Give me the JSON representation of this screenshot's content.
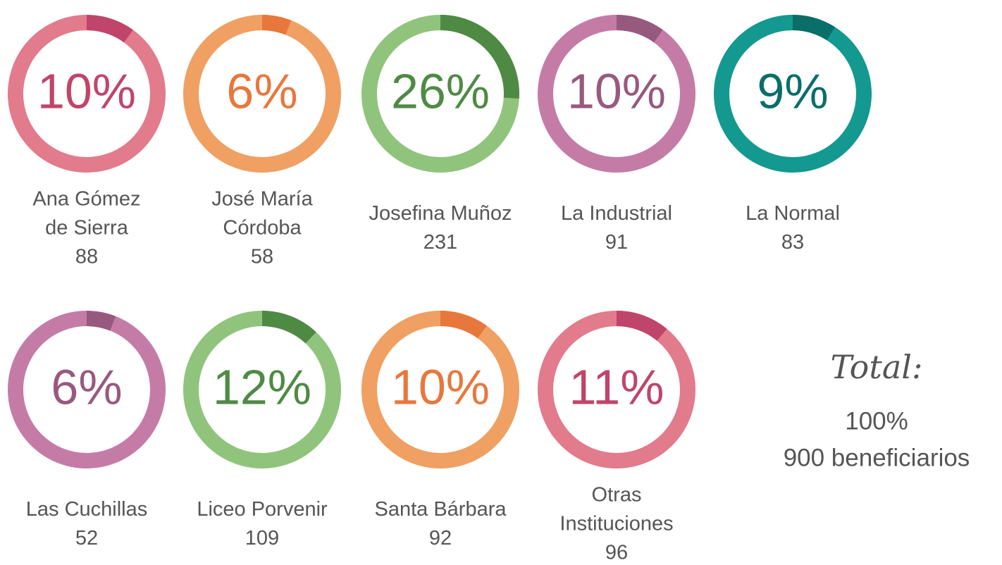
{
  "chart_data": [
    {
      "type": "donut",
      "label_lines": [
        "Ana Gómez",
        "de Sierra"
      ],
      "count": 88,
      "values": [
        10
      ],
      "value_labels": [
        "10%"
      ],
      "color": "#e27b8b",
      "accent_color": "#c0456a"
    },
    {
      "type": "donut",
      "label_lines": [
        "José María",
        "Córdoba"
      ],
      "count": 58,
      "values": [
        6
      ],
      "value_labels": [
        "6%"
      ],
      "color": "#efa062",
      "accent_color": "#e8773c"
    },
    {
      "type": "donut",
      "label_lines": [
        "Josefina Muñoz"
      ],
      "count": 231,
      "values": [
        26
      ],
      "value_labels": [
        "26%"
      ],
      "color": "#90c47c",
      "accent_color": "#4f8a45"
    },
    {
      "type": "donut",
      "label_lines": [
        "La Industrial"
      ],
      "count": 91,
      "values": [
        10
      ],
      "value_labels": [
        "10%"
      ],
      "color": "#c47ca7",
      "accent_color": "#98597f"
    },
    {
      "type": "donut",
      "label_lines": [
        "La Normal"
      ],
      "count": 83,
      "values": [
        9
      ],
      "value_labels": [
        "9%"
      ],
      "color": "#13998f",
      "accent_color": "#0a6e69"
    },
    {
      "type": "donut",
      "label_lines": [
        "Las Cuchillas"
      ],
      "count": 52,
      "values": [
        6
      ],
      "value_labels": [
        "6%"
      ],
      "color": "#c47ca7",
      "accent_color": "#98597f"
    },
    {
      "type": "donut",
      "label_lines": [
        "Liceo Porvenir"
      ],
      "count": 109,
      "values": [
        12
      ],
      "value_labels": [
        "12%"
      ],
      "color": "#90c47c",
      "accent_color": "#4f8a45"
    },
    {
      "type": "donut",
      "label_lines": [
        "Santa Bárbara"
      ],
      "count": 92,
      "values": [
        10
      ],
      "value_labels": [
        "10%"
      ],
      "color": "#efa062",
      "accent_color": "#e8773c"
    },
    {
      "type": "donut",
      "label_lines": [
        "Otras",
        "Instituciones"
      ],
      "count": 96,
      "values": [
        11
      ],
      "value_labels": [
        "11%"
      ],
      "color": "#e27b8b",
      "accent_color": "#c0456a"
    }
  ],
  "total": {
    "title": "Total:",
    "percent": "100%",
    "beneficiaries": "900 beneficiarios"
  }
}
